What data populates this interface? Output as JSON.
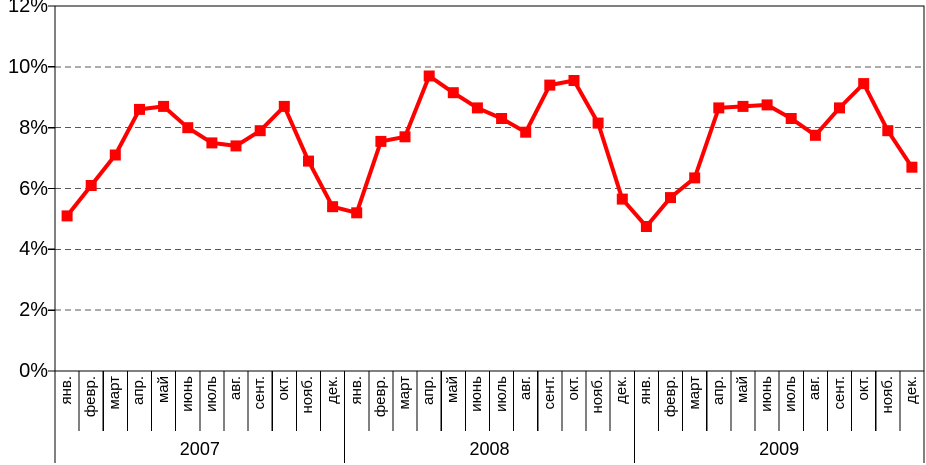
{
  "chart_data": {
    "type": "line",
    "title": "",
    "months": [
      "янв.",
      "февр.",
      "март",
      "апр.",
      "май",
      "июнь",
      "июль",
      "авг.",
      "сент.",
      "окт.",
      "нояб.",
      "дек."
    ],
    "years": [
      "2007",
      "2008",
      "2009"
    ],
    "series": [
      {
        "name": "monthly-percent",
        "color": "#FF0000",
        "marker": "square",
        "values": [
          5.1,
          6.1,
          7.1,
          8.6,
          8.7,
          8.0,
          7.5,
          7.4,
          7.9,
          8.7,
          6.9,
          5.4,
          5.2,
          7.55,
          7.7,
          9.7,
          9.15,
          8.65,
          8.3,
          7.85,
          9.4,
          9.55,
          8.15,
          5.65,
          4.75,
          5.7,
          6.35,
          8.65,
          8.7,
          8.75,
          8.3,
          7.75,
          8.65,
          9.45,
          7.9,
          6.7
        ]
      }
    ],
    "y_ticks": [
      "12%",
      "10%",
      "8%",
      "6%",
      "4%",
      "2%",
      "0%"
    ],
    "y_tick_values": [
      12,
      10,
      8,
      6,
      4,
      2,
      0
    ],
    "ylim": [
      0,
      12
    ],
    "xlabel": "",
    "ylabel": "",
    "layout_hints": {
      "grid": "horizontal-dashed",
      "legend": "none",
      "plot_border": "full-frame"
    }
  },
  "colors": {
    "series": "#FF0000",
    "grid": "#595959",
    "axis": "#000000",
    "background": "#FFFFFF",
    "text": "#000000"
  }
}
